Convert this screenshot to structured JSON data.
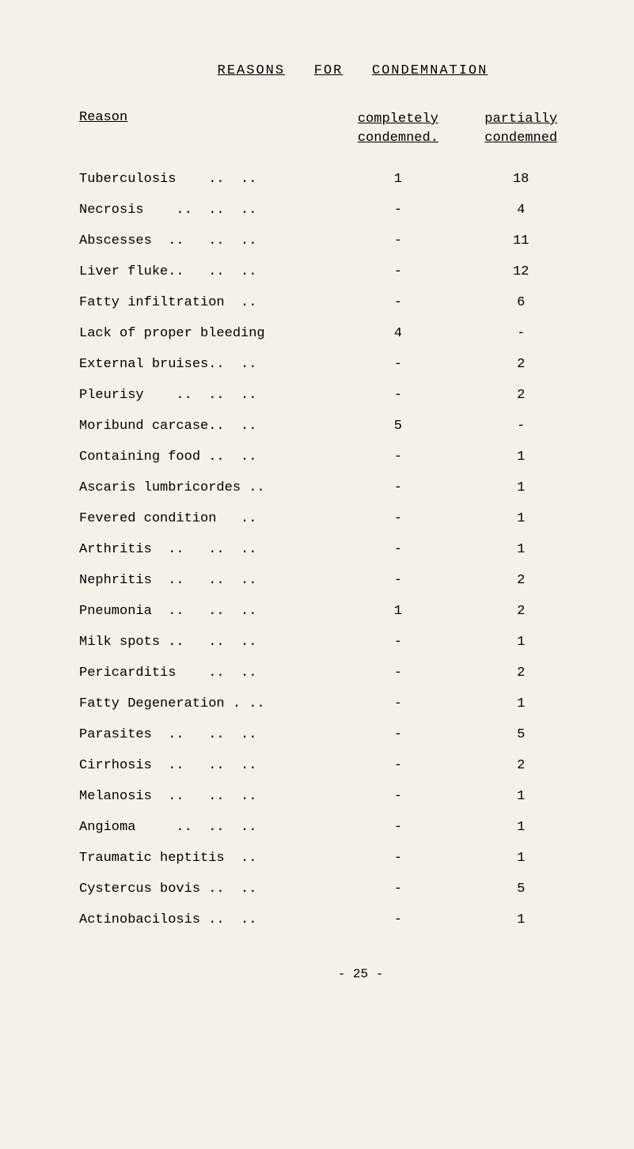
{
  "title": {
    "w1": "REASONS",
    "w2": "FOR",
    "w3": "CONDEMNATION"
  },
  "headers": {
    "reason": "Reason",
    "complete_l1": "completely",
    "complete_l2": "condemned.",
    "partial_l1": "partially",
    "partial_l2": "condemned"
  },
  "rows": [
    {
      "reason": "Tuberculosis    ..  ..",
      "complete": "1",
      "partial": "18"
    },
    {
      "reason": "Necrosis    ..  ..  ..",
      "complete": "-",
      "partial": "4"
    },
    {
      "reason": "Abscesses  ..   ..  ..",
      "complete": "-",
      "partial": "11"
    },
    {
      "reason": "Liver fluke..   ..  ..",
      "complete": "-",
      "partial": "12"
    },
    {
      "reason": "Fatty infiltration  ..",
      "complete": "-",
      "partial": "6"
    },
    {
      "reason": "Lack of proper bleeding",
      "complete": "4",
      "partial": "-"
    },
    {
      "reason": "External bruises..  ..",
      "complete": "-",
      "partial": "2"
    },
    {
      "reason": "Pleurisy    ..  ..  ..",
      "complete": "-",
      "partial": "2"
    },
    {
      "reason": "Moribund carcase..  ..",
      "complete": "5",
      "partial": "-"
    },
    {
      "reason": "Containing food ..  ..",
      "complete": "-",
      "partial": "1"
    },
    {
      "reason": "Ascaris lumbricordes ..",
      "complete": "-",
      "partial": "1"
    },
    {
      "reason": "Fevered condition   ..",
      "complete": "-",
      "partial": "1"
    },
    {
      "reason": "Arthritis  ..   ..  ..",
      "complete": "-",
      "partial": "1"
    },
    {
      "reason": "Nephritis  ..   ..  ..",
      "complete": "-",
      "partial": "2"
    },
    {
      "reason": "Pneumonia  ..   ..  ..",
      "complete": "1",
      "partial": "2"
    },
    {
      "reason": "Milk spots ..   ..  ..",
      "complete": "-",
      "partial": "1"
    },
    {
      "reason": "Pericarditis    ..  ..",
      "complete": "-",
      "partial": "2"
    },
    {
      "reason": "Fatty Degeneration . ..",
      "complete": "-",
      "partial": "1"
    },
    {
      "reason": "Parasites  ..   ..  ..",
      "complete": "-",
      "partial": "5"
    },
    {
      "reason": "Cirrhosis  ..   ..  ..",
      "complete": "-",
      "partial": "2"
    },
    {
      "reason": "Melanosis  ..   ..  ..",
      "complete": "-",
      "partial": "1"
    },
    {
      "reason": "Angioma     ..  ..  ..",
      "complete": "-",
      "partial": "1"
    },
    {
      "reason": "Traumatic heptitis  ..",
      "complete": "-",
      "partial": "1"
    },
    {
      "reason": "Cystercus bovis ..  ..",
      "complete": "-",
      "partial": "5"
    },
    {
      "reason": "Actinobacilosis ..  ..",
      "complete": "-",
      "partial": "1"
    }
  ],
  "page_number": "- 25 -"
}
